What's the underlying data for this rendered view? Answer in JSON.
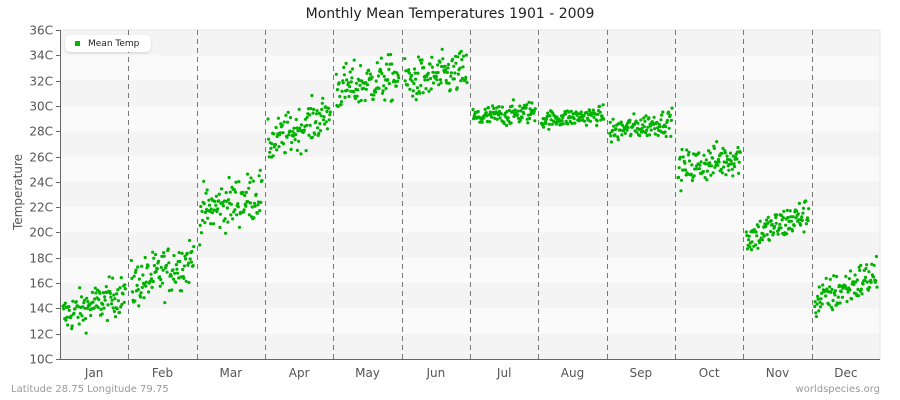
{
  "header": {
    "title": "Monthly Mean Temperatures 1901 - 2009"
  },
  "footer": {
    "location": "Latitude 28.75 Longitude 79.75",
    "source": "worldspecies.org"
  },
  "legend": {
    "label": "Mean Temp",
    "color": "#00b300"
  },
  "colors": {
    "point": "#00b300",
    "band_dark": "#f4f4f4",
    "band_light": "#fafafa",
    "axis": "#666666",
    "separator": "#777777"
  },
  "chart_data": {
    "type": "scatter",
    "title": "Monthly Mean Temperatures 1901 - 2009",
    "xlabel": "",
    "ylabel": "Temperature",
    "ylim": [
      10,
      36
    ],
    "yticks": [
      "10C",
      "12C",
      "14C",
      "16C",
      "18C",
      "20C",
      "22C",
      "24C",
      "26C",
      "28C",
      "30C",
      "32C",
      "34C",
      "36C"
    ],
    "categories": [
      "Jan",
      "Feb",
      "Mar",
      "Apr",
      "May",
      "Jun",
      "Jul",
      "Aug",
      "Sep",
      "Oct",
      "Nov",
      "Dec"
    ],
    "legend": [
      "Mean Temp"
    ],
    "legend_position": "top-left",
    "grid": "horizontal alternating bands, dashed vertical month separators",
    "years": [
      1901,
      2009
    ],
    "points_per_month": 109,
    "series": [
      {
        "name": "Mean Temp",
        "month_mean": [
          14.3,
          16.8,
          22.3,
          28.2,
          31.8,
          32.3,
          29.3,
          29.1,
          28.4,
          25.5,
          20.5,
          15.6
        ],
        "month_min": [
          11.5,
          14.2,
          18.6,
          25.2,
          28.0,
          29.0,
          28.0,
          28.0,
          26.8,
          22.8,
          18.0,
          13.0
        ],
        "month_max": [
          17.1,
          21.2,
          25.7,
          31.2,
          34.5,
          35.2,
          31.2,
          30.5,
          30.3,
          27.9,
          22.8,
          18.5
        ],
        "month_trend": [
          1.8,
          2.2,
          1.5,
          2.5,
          1.0,
          0.8,
          0.5,
          0.4,
          0.8,
          1.0,
          2.0,
          2.2
        ]
      }
    ]
  }
}
